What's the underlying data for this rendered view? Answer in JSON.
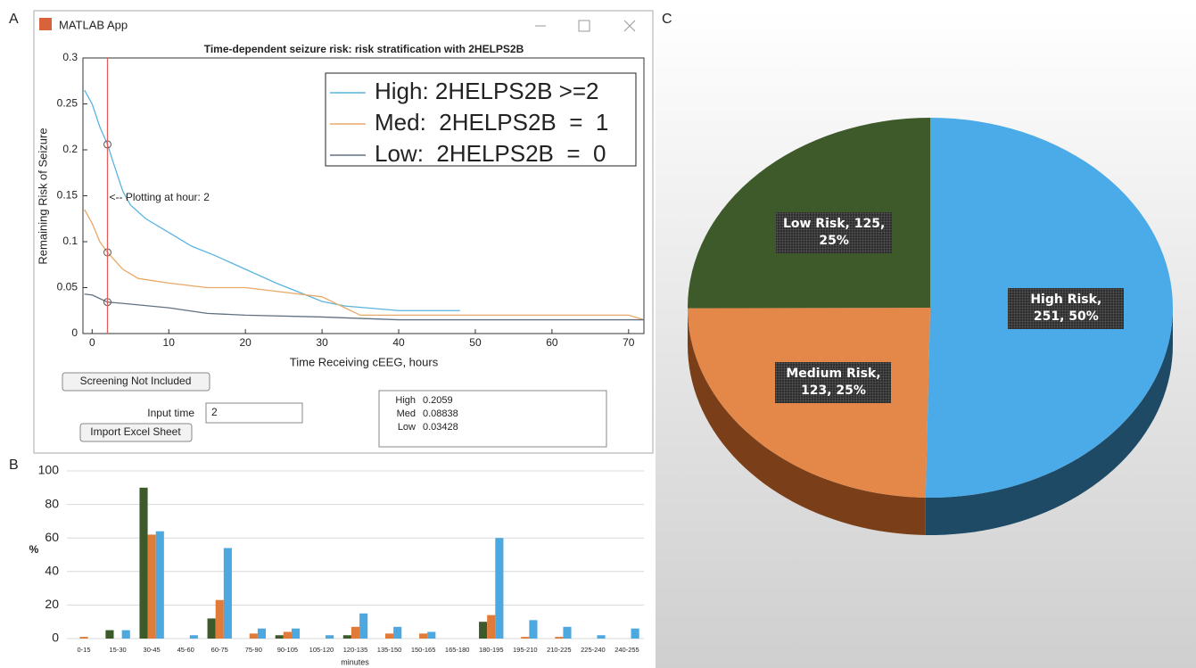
{
  "panels": [
    "A",
    "B",
    "C"
  ],
  "app": {
    "window_title": "MATLAB App",
    "screening_button": "Screening Not Included",
    "input_label": "Input time",
    "input_value": "2",
    "import_button": "Import Excel Sheet",
    "output_labels": [
      "High",
      "Med",
      "Low"
    ],
    "output_values": [
      "0.2059",
      "0.08838",
      "0.03428"
    ]
  },
  "chart_data": [
    {
      "type": "line",
      "title": "Time-dependent seizure risk: risk stratification with 2HELPS2B",
      "x_label": "Time Receiving cEEG, hours",
      "y_label": "Remaining Risk of Seizure",
      "xlim": [
        -1.2,
        72
      ],
      "ylim": [
        0,
        0.3
      ],
      "xticks": [
        0,
        10,
        20,
        30,
        40,
        50,
        60,
        70
      ],
      "yticks": [
        0,
        0.05,
        0.1,
        0.15,
        0.2,
        0.25,
        0.3
      ],
      "legend": "upper right",
      "marker_x": 2,
      "marker_color": "#e06060",
      "annotation": "<-- Plotting at hour: 2",
      "series": [
        {
          "name": "High: 2HELPS2B >=2",
          "color": "#5ab4e0",
          "x": [
            -1,
            0,
            1,
            2,
            3,
            4,
            5,
            7,
            10,
            13,
            16,
            20,
            24,
            27,
            30,
            33,
            40,
            48
          ],
          "values": [
            0.265,
            0.25,
            0.225,
            0.2059,
            0.18,
            0.155,
            0.14,
            0.125,
            0.11,
            0.095,
            0.085,
            0.07,
            0.055,
            0.045,
            0.035,
            0.03,
            0.025,
            0.025
          ]
        },
        {
          "name": "Med:  2HELPS2B  =  1",
          "color": "#e8a868",
          "x": [
            -1,
            0,
            1,
            2,
            4,
            6,
            10,
            15,
            20,
            25,
            30,
            35,
            40,
            50,
            60,
            70,
            72
          ],
          "values": [
            0.135,
            0.12,
            0.1,
            0.08838,
            0.07,
            0.06,
            0.055,
            0.05,
            0.05,
            0.045,
            0.04,
            0.02,
            0.02,
            0.02,
            0.02,
            0.02,
            0.015
          ]
        },
        {
          "name": "Low:  2HELPS2B  =  0",
          "color": "#607080",
          "x": [
            -1,
            0,
            2,
            5,
            10,
            15,
            20,
            30,
            40,
            50,
            60,
            72
          ],
          "values": [
            0.043,
            0.042,
            0.03428,
            0.032,
            0.028,
            0.022,
            0.02,
            0.018,
            0.015,
            0.015,
            0.015,
            0.015
          ]
        }
      ]
    },
    {
      "type": "bar",
      "x_label": "minutes",
      "y_label": "%",
      "categories": [
        "0-15",
        "15-30",
        "30-45",
        "45-60",
        "60-75",
        "75-90",
        "90-105",
        "105-120",
        "120-135",
        "135-150",
        "150-165",
        "165-180",
        "180-195",
        "195-210",
        "210-225",
        "225-240",
        "240-255"
      ],
      "ylim": [
        0,
        100
      ],
      "yticks": [
        0,
        20,
        40,
        60,
        80,
        100
      ],
      "grid": true,
      "series": [
        {
          "color": "#3d5a2a",
          "values": [
            0,
            5,
            90,
            0,
            12,
            0,
            2,
            0,
            2,
            0,
            0,
            0,
            10,
            0,
            0,
            0,
            0
          ]
        },
        {
          "color": "#e07b39",
          "values": [
            1,
            0,
            62,
            0,
            23,
            3,
            4,
            0,
            7,
            3,
            3,
            0,
            14,
            1,
            1,
            0,
            0
          ]
        },
        {
          "color": "#4ea8e0",
          "values": [
            0,
            5,
            64,
            2,
            54,
            6,
            6,
            2,
            15,
            7,
            4,
            0,
            60,
            11,
            7,
            2,
            6
          ]
        }
      ]
    },
    {
      "type": "pie",
      "values": [
        251,
        123,
        125
      ],
      "value_labels": [
        "High Risk, 251, 50%",
        "Medium Risk, 123, 25%",
        "Low Risk, 125, 25%"
      ],
      "colors": [
        "#4aabe8",
        "#e4884a",
        "#3e5a2b"
      ],
      "side_colors": [
        "#1f4a66",
        "#7a3f18",
        "#26381a"
      ]
    }
  ]
}
